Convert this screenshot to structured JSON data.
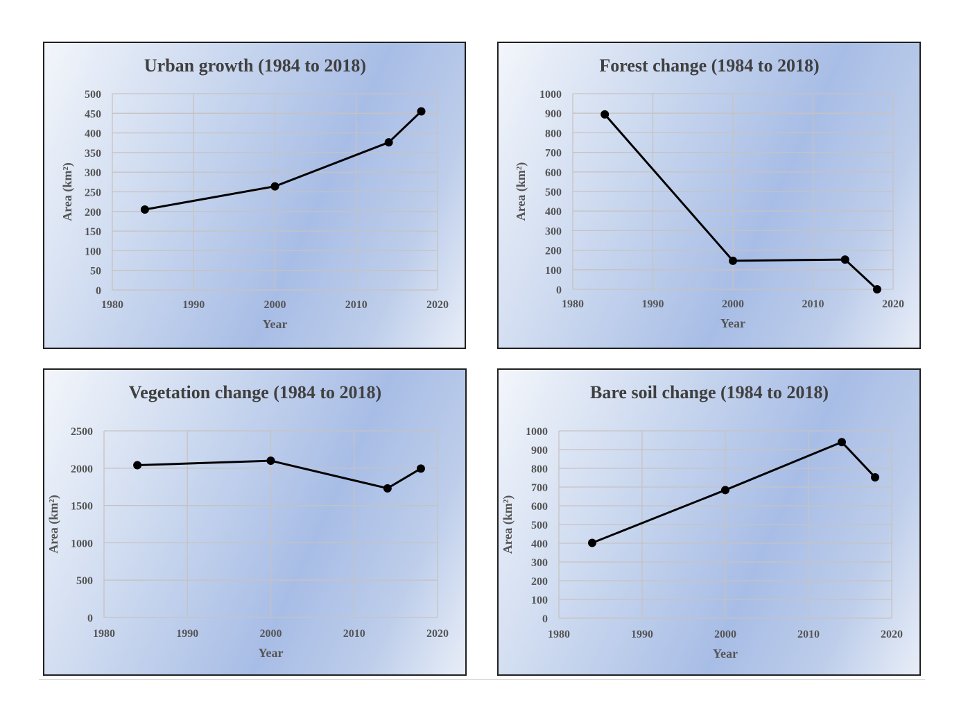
{
  "chart_data": [
    {
      "type": "line",
      "title": "Urban growth (1984 to 2018)",
      "xlabel": "Year",
      "ylabel": "Area (km²)",
      "xlim": [
        1980,
        2020
      ],
      "ylim": [
        0,
        500
      ],
      "xticks": [
        "1980",
        "1990",
        "2000",
        "2010",
        "2020"
      ],
      "yticks": [
        "0",
        "50",
        "100",
        "150",
        "200",
        "250",
        "300",
        "350",
        "400",
        "450",
        "500"
      ],
      "grid": true,
      "x": [
        1984,
        2000,
        2014,
        2018
      ],
      "y": [
        205,
        264,
        376,
        455
      ]
    },
    {
      "type": "line",
      "title": "Forest change (1984 to 2018)",
      "xlabel": "Year",
      "ylabel": "Area (km²)",
      "xlim": [
        1980,
        2020
      ],
      "ylim": [
        0,
        1000
      ],
      "xticks": [
        "1980",
        "1990",
        "2000",
        "2010",
        "2020"
      ],
      "yticks": [
        "0",
        "100",
        "200",
        "300",
        "400",
        "500",
        "600",
        "700",
        "800",
        "900",
        "1000"
      ],
      "grid": true,
      "x": [
        1984,
        2000,
        2014,
        2018
      ],
      "y": [
        894,
        146,
        152,
        0
      ]
    },
    {
      "type": "line",
      "title": "Vegetation change (1984 to 2018)",
      "xlabel": "Year",
      "ylabel": "Area (km²)",
      "xlim": [
        1980,
        2020
      ],
      "ylim": [
        0,
        2500
      ],
      "xticks": [
        "1980",
        "1990",
        "2000",
        "2010",
        "2020"
      ],
      "yticks": [
        "0",
        "500",
        "1000",
        "1500",
        "2000",
        "2500"
      ],
      "grid": true,
      "x": [
        1984,
        2000,
        2014,
        2018
      ],
      "y": [
        2040,
        2100,
        1730,
        1995
      ]
    },
    {
      "type": "line",
      "title": "Bare soil change (1984 to 2018)",
      "xlabel": "Year",
      "ylabel": "Area (km²)",
      "xlim": [
        1980,
        2020
      ],
      "ylim": [
        0,
        1000
      ],
      "xticks": [
        "1980",
        "1990",
        "2000",
        "2010",
        "2020"
      ],
      "yticks": [
        "0",
        "100",
        "200",
        "300",
        "400",
        "500",
        "600",
        "700",
        "800",
        "900",
        "1000"
      ],
      "grid": true,
      "x": [
        1984,
        2000,
        2014,
        2018
      ],
      "y": [
        402,
        684,
        940,
        752
      ]
    }
  ]
}
